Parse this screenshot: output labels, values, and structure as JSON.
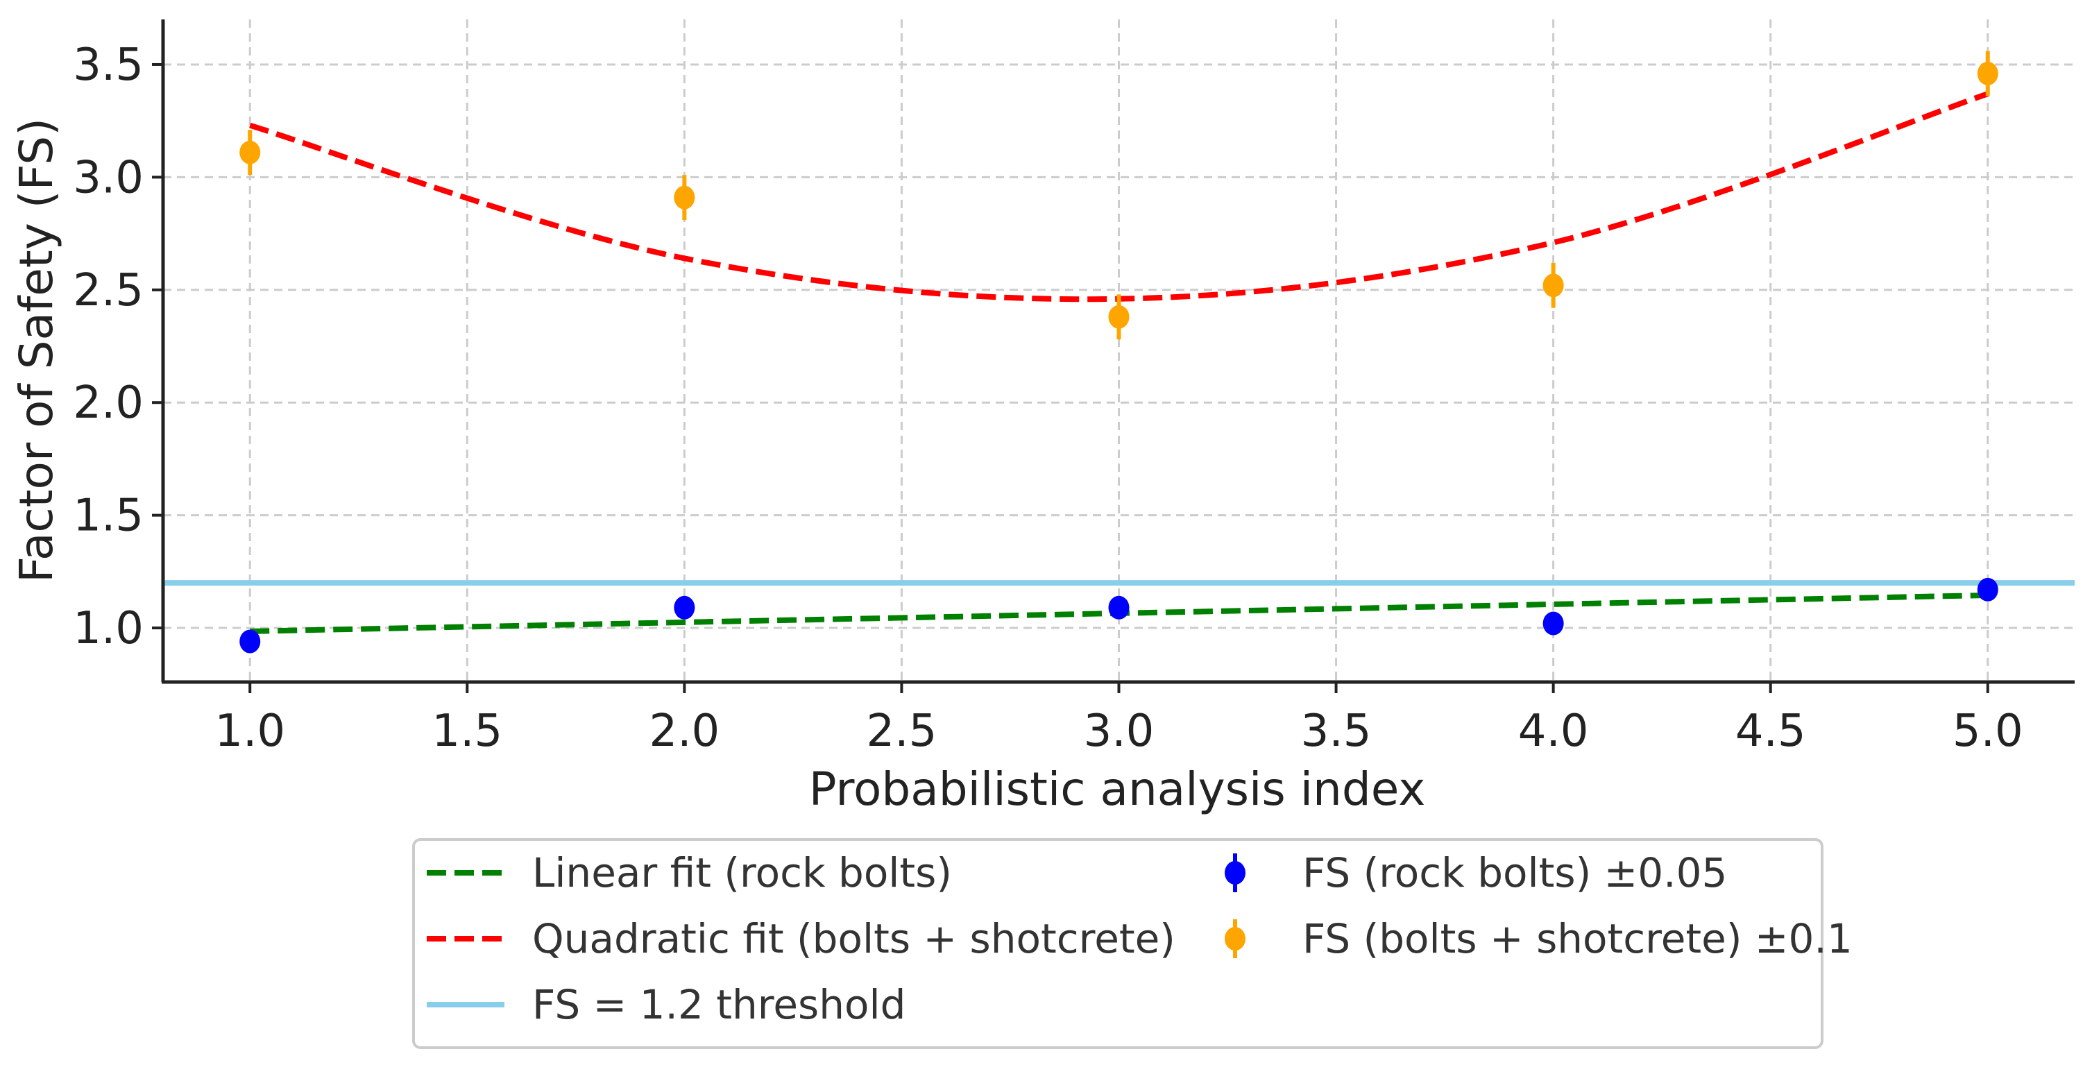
{
  "chart_data": {
    "type": "scatter",
    "xlabel": "Probabilistic analysis index",
    "ylabel": "Factor of Safety (FS)",
    "xlim": [
      0.8,
      5.2
    ],
    "ylim": [
      0.76,
      3.7
    ],
    "grid": true,
    "legend_position": "bottom",
    "x_ticks": [
      "1.0",
      "1.5",
      "2.0",
      "2.5",
      "3.0",
      "3.5",
      "4.0",
      "4.5",
      "5.0"
    ],
    "y_ticks": [
      "1.0",
      "1.5",
      "2.0",
      "2.5",
      "3.0",
      "3.5"
    ],
    "series": [
      {
        "name": "FS (rock bolts) ±0.05",
        "kind": "errorbar",
        "color": "#0000ff",
        "x": [
          1,
          2,
          3,
          4,
          5
        ],
        "y": [
          0.94,
          1.09,
          1.09,
          1.02,
          1.17
        ],
        "error": 0.05
      },
      {
        "name": "FS (bolts + shotcrete) ±0.1",
        "kind": "errorbar",
        "color": "#ffa500",
        "x": [
          1,
          2,
          3,
          4,
          5
        ],
        "y": [
          3.11,
          2.91,
          2.38,
          2.52,
          3.46
        ],
        "error": 0.1
      },
      {
        "name": "Linear fit (rock bolts)",
        "kind": "line",
        "style": "dashed",
        "color": "#008000",
        "x": [
          1,
          5
        ],
        "y": [
          0.985,
          1.145
        ]
      },
      {
        "name": "Quadratic fit (bolts + shotcrete)",
        "kind": "line",
        "style": "dashed",
        "color": "#ff0000",
        "x": [
          1,
          2,
          3,
          4,
          5
        ],
        "y": [
          3.23,
          2.64,
          2.46,
          2.71,
          3.37
        ]
      },
      {
        "name": "FS = 1.2 threshold",
        "kind": "hline",
        "color": "#87ceeb",
        "y": 1.2
      }
    ],
    "legend": [
      "Linear fit (rock bolts)",
      "Quadratic fit (bolts + shotcrete)",
      "FS = 1.2 threshold",
      "FS (rock bolts) ±0.05",
      "FS (bolts + shotcrete) ±0.1"
    ]
  }
}
